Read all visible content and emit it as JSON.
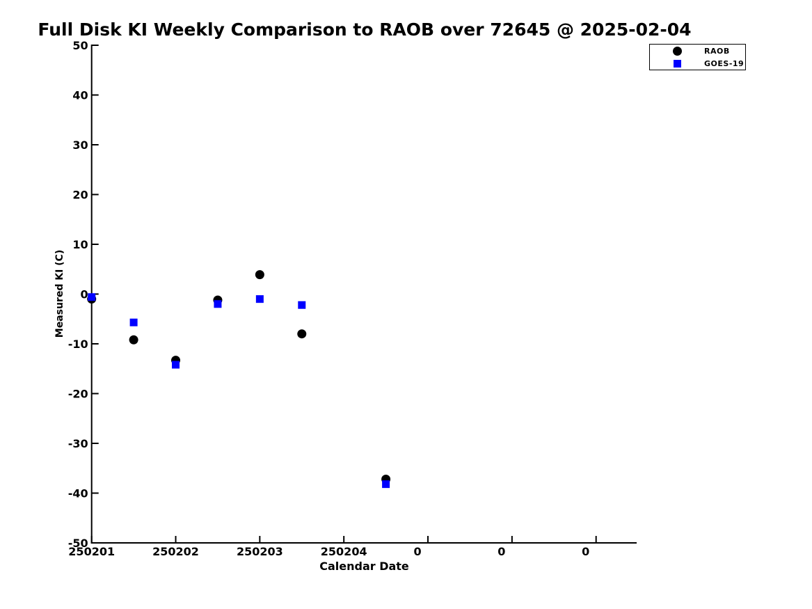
{
  "chart_data": {
    "type": "scatter",
    "title": "Full Disk KI Weekly Comparison to RAOB over 72645 @ 2025-02-04",
    "xlabel": "Calendar Date",
    "ylabel": "Measured KI (C)",
    "grid": false,
    "ylim": [
      -50,
      50
    ],
    "y_ticks": [
      50,
      40,
      30,
      20,
      10,
      0,
      -10,
      -20,
      -30,
      -40,
      -50
    ],
    "x_tick_values": [
      250201,
      250202,
      250203,
      250204,
      250205,
      250206,
      250207
    ],
    "x_tick_labels": [
      "250201",
      "250202",
      "250203",
      "250204",
      "0",
      "0",
      "0"
    ],
    "xlim": [
      250201,
      250207.48
    ],
    "legend": {
      "position": "top-right",
      "entries": [
        {
          "label": "RAOB",
          "marker": "circle",
          "color": "#000000"
        },
        {
          "label": "GOES-19",
          "marker": "square",
          "color": "#0000ff"
        }
      ]
    },
    "series": [
      {
        "name": "RAOB",
        "marker": "circle",
        "color": "#000000",
        "x": [
          250201,
          250201.5,
          250202,
          250202.5,
          250203,
          250203.5,
          250204.5
        ],
        "y": [
          -1.0,
          -9.2,
          -13.3,
          -1.2,
          3.9,
          -8.0,
          -37.2
        ]
      },
      {
        "name": "GOES-19",
        "marker": "square",
        "color": "#0000ff",
        "x": [
          250201,
          250201.5,
          250202,
          250202.5,
          250203,
          250203.5,
          250204.5
        ],
        "y": [
          -0.6,
          -5.7,
          -14.2,
          -2.0,
          -1.0,
          -2.2,
          -38.2
        ]
      }
    ],
    "colors": {
      "axis": "#000000",
      "background": "#ffffff"
    }
  }
}
